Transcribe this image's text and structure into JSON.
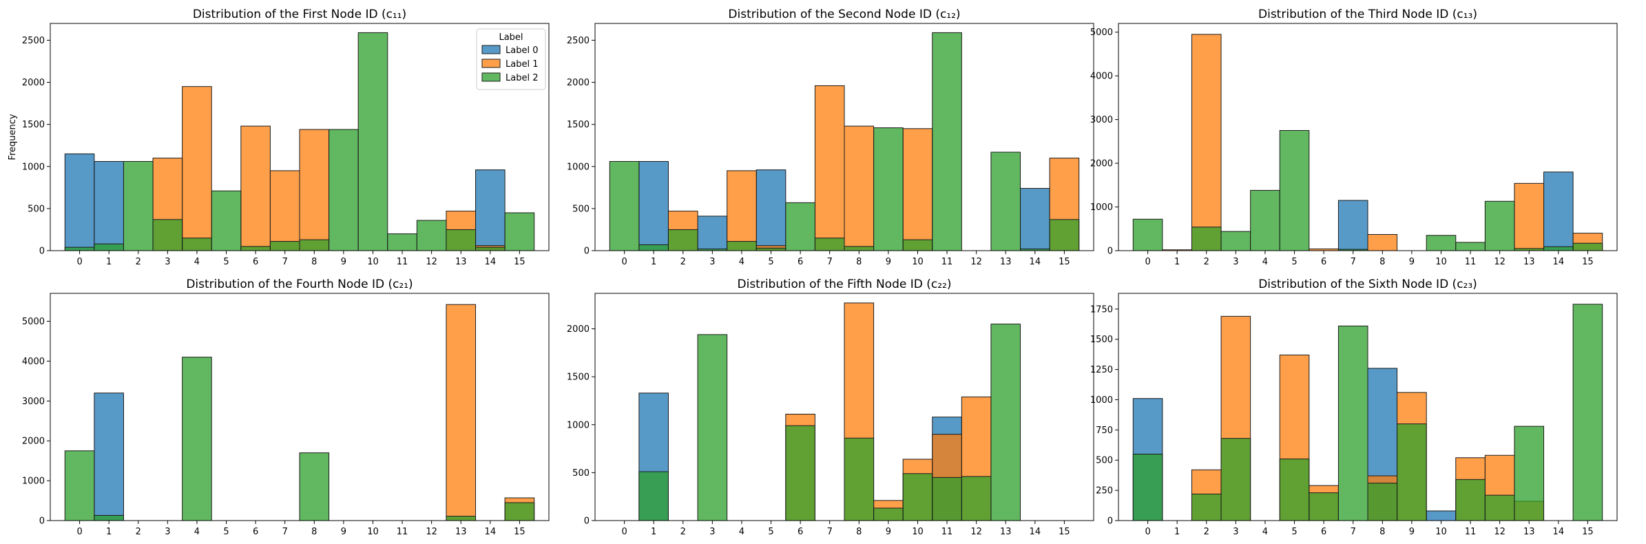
{
  "colors": {
    "label0": "#1f77b4",
    "label1": "#ff7f0e",
    "label2": "#2ca02c"
  },
  "legend": {
    "title": "Label",
    "entries": [
      "Label 0",
      "Label 1",
      "Label 2"
    ]
  },
  "ylabel": "Frequency",
  "chart_data": [
    {
      "type": "bar",
      "title": "Distribution of the First Node ID (c₁₁)",
      "categories": [
        "0",
        "1",
        "2",
        "3",
        "4",
        "5",
        "6",
        "7",
        "8",
        "9",
        "10",
        "11",
        "12",
        "13",
        "14",
        "15"
      ],
      "xlim": [
        -1,
        16
      ],
      "ylim": [
        0,
        2700
      ],
      "yticks": [
        0,
        500,
        1000,
        1500,
        2000,
        2500
      ],
      "series": [
        {
          "name": "Label 0",
          "values": [
            1150,
            1060,
            0,
            0,
            0,
            0,
            0,
            0,
            0,
            0,
            0,
            0,
            0,
            0,
            960,
            0
          ]
        },
        {
          "name": "Label 1",
          "values": [
            0,
            0,
            0,
            1100,
            1950,
            0,
            1480,
            950,
            1440,
            0,
            0,
            0,
            0,
            470,
            60,
            0
          ]
        },
        {
          "name": "Label 2",
          "values": [
            40,
            80,
            1060,
            370,
            150,
            710,
            50,
            110,
            130,
            1440,
            2590,
            200,
            360,
            250,
            40,
            450
          ]
        }
      ]
    },
    {
      "type": "bar",
      "title": "Distribution of the Second Node ID (c₁₂)",
      "categories": [
        "0",
        "1",
        "2",
        "3",
        "4",
        "5",
        "6",
        "7",
        "8",
        "9",
        "10",
        "11",
        "12",
        "13",
        "14",
        "15"
      ],
      "xlim": [
        -1,
        16
      ],
      "ylim": [
        0,
        2700
      ],
      "yticks": [
        0,
        500,
        1000,
        1500,
        2000,
        2500
      ],
      "series": [
        {
          "name": "Label 0",
          "values": [
            0,
            1060,
            0,
            410,
            0,
            960,
            0,
            0,
            0,
            0,
            0,
            0,
            0,
            0,
            740,
            0
          ]
        },
        {
          "name": "Label 1",
          "values": [
            0,
            0,
            470,
            0,
            950,
            60,
            0,
            1960,
            1480,
            0,
            1450,
            0,
            0,
            0,
            0,
            1100
          ]
        },
        {
          "name": "Label 2",
          "values": [
            1060,
            70,
            250,
            20,
            110,
            30,
            570,
            150,
            50,
            1460,
            130,
            2590,
            0,
            1170,
            20,
            370
          ]
        }
      ]
    },
    {
      "type": "bar",
      "title": "Distribution of the Third Node ID (c₁₃)",
      "categories": [
        "0",
        "1",
        "2",
        "3",
        "4",
        "5",
        "6",
        "7",
        "8",
        "9",
        "10",
        "11",
        "12",
        "13",
        "14",
        "15"
      ],
      "xlim": [
        -1,
        16
      ],
      "ylim": [
        0,
        5200
      ],
      "yticks": [
        0,
        1000,
        2000,
        3000,
        4000,
        5000
      ],
      "series": [
        {
          "name": "Label 0",
          "values": [
            0,
            0,
            0,
            0,
            0,
            0,
            0,
            1150,
            0,
            0,
            0,
            0,
            0,
            0,
            1800,
            0
          ]
        },
        {
          "name": "Label 1",
          "values": [
            0,
            20,
            4950,
            0,
            0,
            0,
            40,
            0,
            370,
            0,
            0,
            0,
            0,
            1540,
            0,
            400
          ]
        },
        {
          "name": "Label 2",
          "values": [
            720,
            0,
            540,
            440,
            1380,
            2750,
            0,
            30,
            0,
            0,
            350,
            190,
            1130,
            50,
            90,
            170
          ]
        }
      ]
    },
    {
      "type": "bar",
      "title": "Distribution of the Fourth Node ID (c₂₁)",
      "categories": [
        "0",
        "1",
        "2",
        "3",
        "4",
        "5",
        "6",
        "7",
        "8",
        "9",
        "10",
        "11",
        "12",
        "13",
        "14",
        "15"
      ],
      "xlim": [
        -1,
        16
      ],
      "ylim": [
        0,
        5700
      ],
      "yticks": [
        0,
        1000,
        2000,
        3000,
        4000,
        5000
      ],
      "series": [
        {
          "name": "Label 0",
          "values": [
            0,
            3200,
            0,
            0,
            0,
            0,
            0,
            0,
            0,
            0,
            0,
            0,
            0,
            0,
            0,
            0
          ]
        },
        {
          "name": "Label 1",
          "values": [
            0,
            0,
            0,
            0,
            0,
            0,
            0,
            0,
            0,
            0,
            0,
            0,
            0,
            5420,
            0,
            570
          ]
        },
        {
          "name": "Label 2",
          "values": [
            1750,
            130,
            0,
            0,
            4100,
            0,
            0,
            0,
            1700,
            0,
            0,
            0,
            0,
            110,
            0,
            450
          ]
        }
      ]
    },
    {
      "type": "bar",
      "title": "Distribution of the Fifth Node ID (c₂₂)",
      "categories": [
        "0",
        "1",
        "2",
        "3",
        "4",
        "5",
        "6",
        "7",
        "8",
        "9",
        "10",
        "11",
        "12",
        "13",
        "14",
        "15"
      ],
      "xlim": [
        -1,
        16
      ],
      "ylim": [
        0,
        2370
      ],
      "yticks": [
        0,
        500,
        1000,
        1500,
        2000
      ],
      "series": [
        {
          "name": "Label 0",
          "values": [
            0,
            1330,
            0,
            0,
            0,
            0,
            0,
            0,
            0,
            0,
            0,
            1080,
            0,
            0,
            0,
            0
          ]
        },
        {
          "name": "Label 1",
          "values": [
            0,
            0,
            0,
            0,
            0,
            0,
            1110,
            0,
            2270,
            210,
            640,
            900,
            1290,
            0,
            0,
            0
          ]
        },
        {
          "name": "Label 2",
          "values": [
            0,
            510,
            0,
            1940,
            0,
            0,
            990,
            0,
            860,
            130,
            490,
            450,
            460,
            2050,
            0,
            0
          ]
        }
      ]
    },
    {
      "type": "bar",
      "title": "Distribution of the Sixth Node ID (c₂₃)",
      "categories": [
        "0",
        "1",
        "2",
        "3",
        "4",
        "5",
        "6",
        "7",
        "8",
        "9",
        "10",
        "11",
        "12",
        "13",
        "14",
        "15"
      ],
      "xlim": [
        -1,
        16
      ],
      "ylim": [
        0,
        1880
      ],
      "yticks": [
        0,
        250,
        500,
        750,
        1000,
        1250,
        1500,
        1750
      ],
      "series": [
        {
          "name": "Label 0",
          "values": [
            1010,
            0,
            0,
            0,
            0,
            0,
            0,
            0,
            1260,
            0,
            80,
            0,
            0,
            0,
            0,
            0
          ]
        },
        {
          "name": "Label 1",
          "values": [
            0,
            0,
            420,
            1690,
            0,
            1370,
            290,
            0,
            370,
            1060,
            0,
            520,
            540,
            160,
            0,
            0
          ]
        },
        {
          "name": "Label 2",
          "values": [
            550,
            0,
            220,
            680,
            0,
            510,
            230,
            1610,
            310,
            800,
            0,
            340,
            210,
            780,
            0,
            1790
          ]
        }
      ]
    }
  ]
}
